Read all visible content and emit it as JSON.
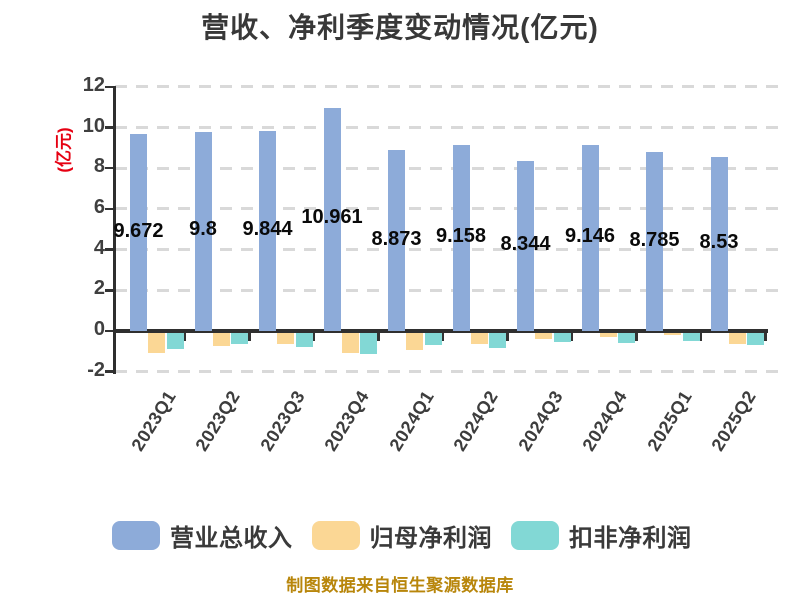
{
  "title": "营收、净利季度变动情况(亿元)",
  "footer": {
    "text": "制图数据来自恒生聚源数据库"
  },
  "chart_data": {
    "type": "bar",
    "title": "营收、净利季度变动情况(亿元)",
    "ylabel": "(亿元)",
    "xlabel": "",
    "categories": [
      "2023Q1",
      "2023Q2",
      "2023Q3",
      "2023Q4",
      "2024Q1",
      "2024Q2",
      "2024Q3",
      "2024Q4",
      "2025Q1",
      "2025Q2"
    ],
    "series": [
      {
        "name": "营业总收入",
        "color": "#8dabd9",
        "values": [
          9.672,
          9.8,
          9.844,
          10.961,
          8.873,
          9.158,
          8.344,
          9.146,
          8.785,
          8.53
        ],
        "data_labels": [
          "9.672",
          "9.8",
          "9.844",
          "10.961",
          "8.873",
          "9.158",
          "8.344",
          "9.146",
          "8.785",
          "8.53"
        ]
      },
      {
        "name": "归母净利润",
        "color": "#fbd795",
        "values": [
          -1.0,
          -0.65,
          -0.54,
          -1.02,
          -0.85,
          -0.56,
          -0.33,
          -0.2,
          -0.1,
          -0.57
        ],
        "values_note": "approximate, read from pixels (no data labels shown)"
      },
      {
        "name": "扣非净利润",
        "color": "#82d8d5",
        "values": [
          -0.8,
          -0.57,
          -0.7,
          -1.07,
          -0.62,
          -0.76,
          -0.46,
          -0.53,
          -0.41,
          -0.62
        ],
        "values_note": "approximate, read from pixels (no data labels shown)"
      }
    ],
    "yticks": [
      12,
      10,
      8,
      6,
      4,
      2,
      0,
      -2
    ],
    "ylim": [
      -2,
      12
    ],
    "grid": "dashed horizontal gridlines at every ytick except 0",
    "legend_position": "bottom",
    "colors": {
      "title_text": "#383838",
      "axis": "#2f2f2f",
      "tick_text": "#3f3f3f",
      "gridline": "#d9d9d9",
      "ylabel_red": "#e60012",
      "value_label": "#0a0a0a",
      "footer_gold": "#b8860b",
      "background": "#ffffff"
    }
  }
}
